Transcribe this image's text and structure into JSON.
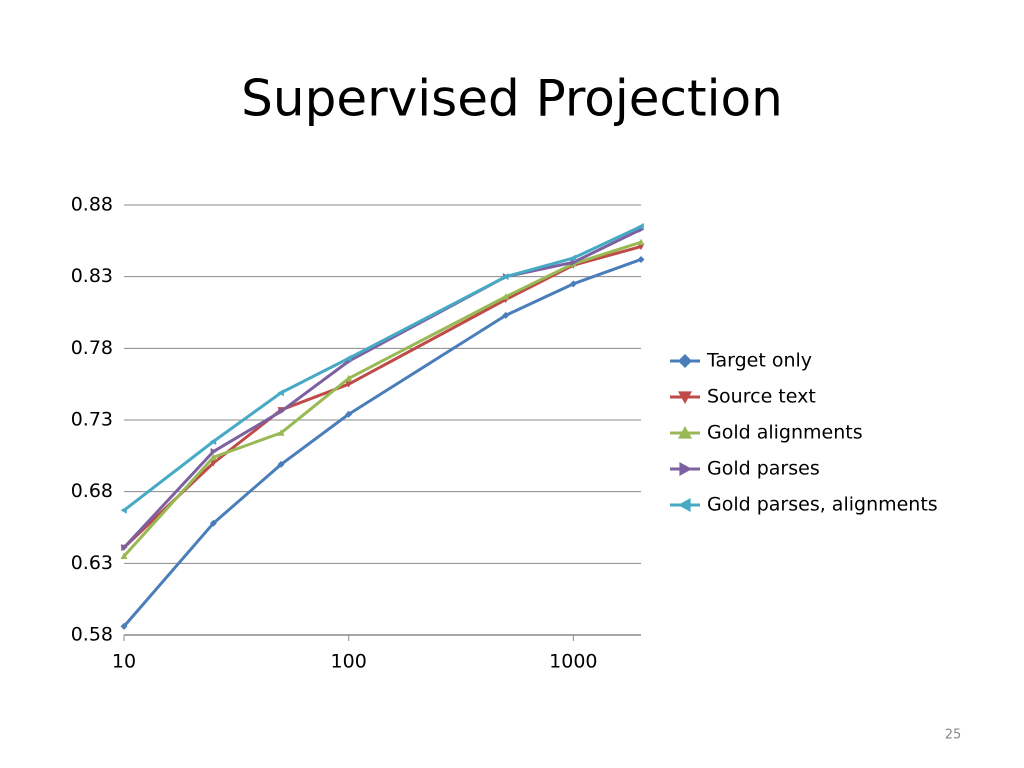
{
  "chart_data": {
    "type": "line",
    "title": "Supervised Projection",
    "x": [
      10,
      25,
      50,
      100,
      500,
      1000,
      2000
    ],
    "xlim": [
      10,
      2000
    ],
    "xticks": [
      10,
      100,
      1000
    ],
    "xscale": "log",
    "ylim": [
      0.58,
      0.88
    ],
    "yticks": [
      0.58,
      0.63,
      0.68,
      0.73,
      0.78,
      0.83,
      0.88
    ],
    "grid": true,
    "legend": "right",
    "series": [
      {
        "name": "Target only",
        "color": "#4a7ebb",
        "marker": "diamond",
        "values": [
          0.586,
          0.658,
          0.699,
          0.734,
          0.803,
          0.825,
          0.842
        ]
      },
      {
        "name": "Source text",
        "color": "#be4b48",
        "marker": "triangle-down",
        "values": [
          0.641,
          0.7,
          0.737,
          0.755,
          0.814,
          0.838,
          0.851
        ]
      },
      {
        "name": "Gold alignments",
        "color": "#98b954",
        "marker": "triangle-up",
        "values": [
          0.635,
          0.704,
          0.721,
          0.759,
          0.816,
          0.839,
          0.854
        ]
      },
      {
        "name": "Gold parses",
        "color": "#7d60a0",
        "marker": "triangle-right",
        "values": [
          0.641,
          0.708,
          0.736,
          0.771,
          0.83,
          0.84,
          0.863
        ]
      },
      {
        "name": "Gold parses, alignments",
        "color": "#46aac5",
        "marker": "triangle-left",
        "values": [
          0.667,
          0.715,
          0.749,
          0.773,
          0.83,
          0.843,
          0.865
        ]
      }
    ]
  },
  "slide_number": "25"
}
